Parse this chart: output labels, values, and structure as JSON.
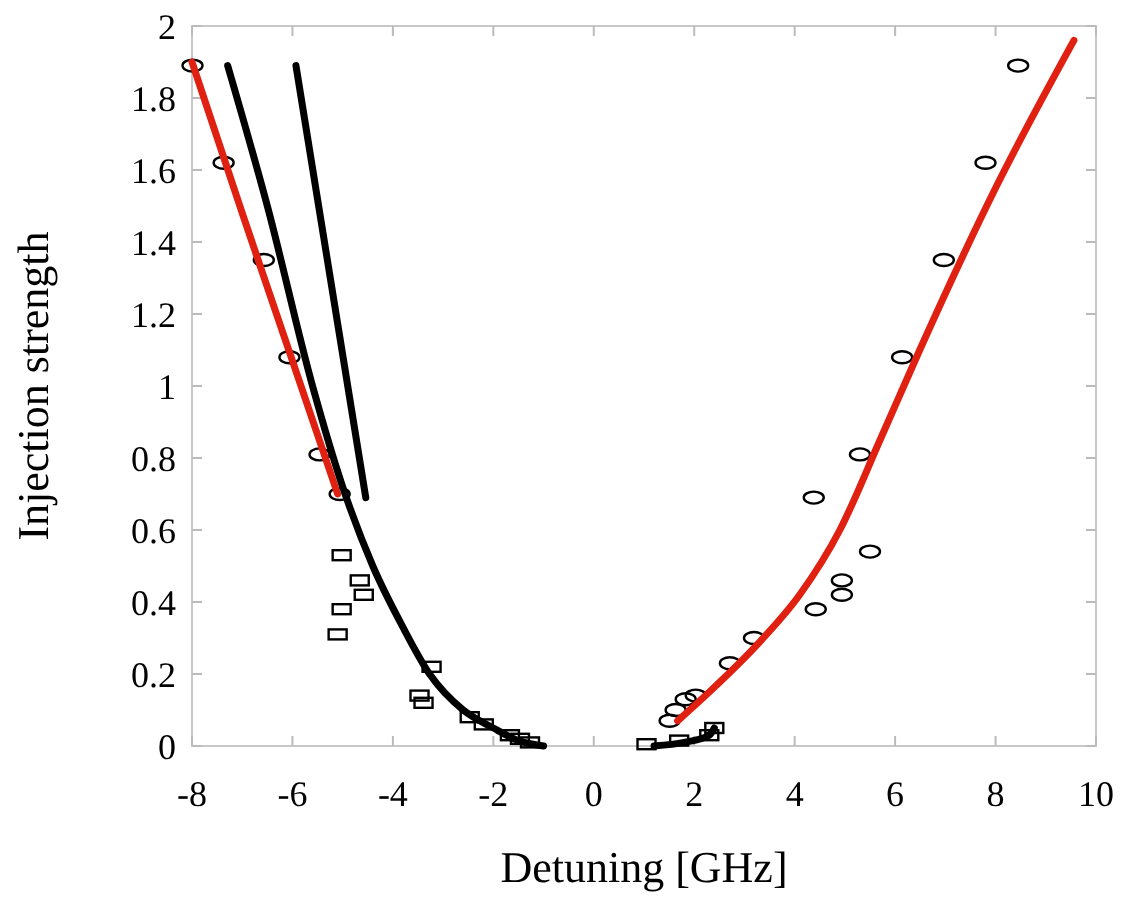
{
  "chart_data": {
    "type": "scatter",
    "xlabel": "Detuning [GHz]",
    "ylabel": "Injection strength",
    "xlim": [
      -8,
      10
    ],
    "ylim": [
      0,
      2
    ],
    "xticks": [
      -8,
      -6,
      -4,
      -2,
      0,
      2,
      4,
      6,
      8,
      10
    ],
    "yticks": [
      0,
      0.2,
      0.4,
      0.6,
      0.8,
      1,
      1.2,
      1.4,
      1.6,
      1.8,
      2
    ],
    "grid": false,
    "series": [
      {
        "marker": "circle",
        "color": "#000000",
        "x": [
          -7.99,
          -7.37,
          -6.57,
          -6.06,
          -5.46,
          -5.06,
          8.45,
          7.8,
          6.97,
          6.14,
          5.3,
          4.38,
          5.5,
          4.94,
          4.94,
          4.42,
          3.19,
          2.71,
          2.03,
          1.83,
          1.63,
          1.51
        ],
        "values": [
          1.89,
          1.62,
          1.35,
          1.08,
          0.81,
          0.7,
          1.89,
          1.62,
          1.35,
          1.08,
          0.81,
          0.69,
          0.54,
          0.46,
          0.42,
          0.38,
          0.3,
          0.23,
          0.14,
          0.13,
          0.1,
          0.07
        ]
      },
      {
        "marker": "square",
        "color": "#000000",
        "x": [
          -5.02,
          -4.66,
          -4.58,
          -5.02,
          -5.1,
          -3.23,
          -3.47,
          -3.39,
          -2.47,
          -2.19,
          -1.67,
          -1.47,
          -1.27,
          1.05,
          1.7,
          2.3,
          2.4
        ],
        "values": [
          0.53,
          0.46,
          0.42,
          0.38,
          0.31,
          0.22,
          0.14,
          0.12,
          0.08,
          0.06,
          0.03,
          0.02,
          0.01,
          0.005,
          0.015,
          0.03,
          0.05
        ]
      },
      {
        "type": "line",
        "color": "#e02010",
        "x": [
          -8,
          -7,
          -6,
          -5.1
        ],
        "values": [
          1.9,
          1.48,
          1.07,
          0.7
        ]
      },
      {
        "type": "line",
        "color": "#e02010",
        "x": [
          1.67,
          2.3,
          3.31,
          4.1,
          4.9,
          5.7,
          6.49,
          8,
          9.56
        ],
        "values": [
          0.07,
          0.15,
          0.29,
          0.42,
          0.6,
          0.85,
          1.1,
          1.55,
          1.96
        ]
      },
      {
        "type": "line",
        "color": "#000000",
        "x": [
          -7.29,
          -6.5,
          -5.6,
          -5,
          -4.4,
          -3.8,
          -3.27,
          -2.6,
          -2,
          -1.5,
          -1
        ],
        "values": [
          1.89,
          1.5,
          1,
          0.72,
          0.5,
          0.33,
          0.2,
          0.1,
          0.05,
          0.015,
          0
        ]
      },
      {
        "type": "line",
        "color": "#000000",
        "x": [
          -5.93,
          -4.54
        ],
        "values": [
          1.89,
          0.69
        ]
      },
      {
        "type": "line",
        "color": "#000000",
        "x": [
          1.2,
          1.8,
          2.3,
          2.4
        ],
        "values": [
          0,
          0.01,
          0.03,
          0.05
        ]
      }
    ]
  }
}
